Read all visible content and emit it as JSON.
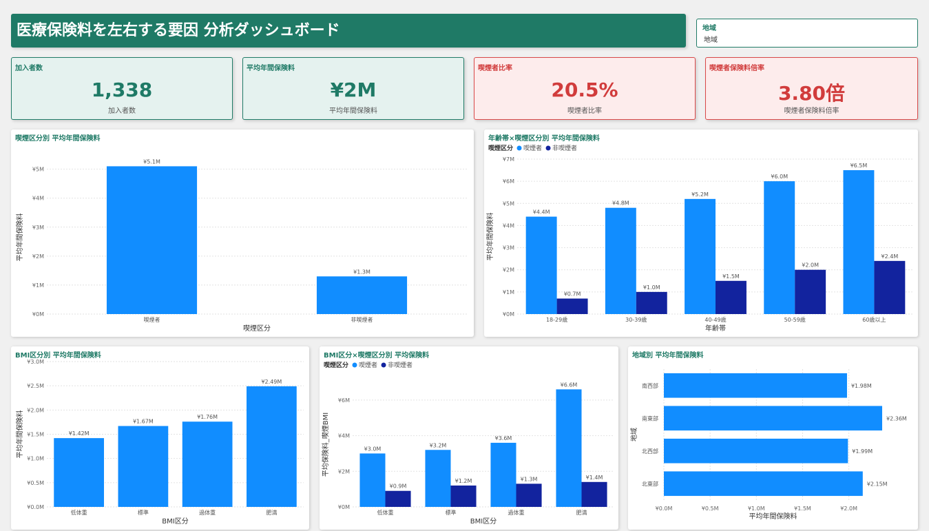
{
  "header": {
    "title": "医療保険料を左右する要因 分析ダッシュボード"
  },
  "slicer": {
    "label": "地域",
    "value": "地域"
  },
  "kpis": [
    {
      "label": "加入者数",
      "value": "1,338",
      "sub": "加入者数"
    },
    {
      "label": "平均年間保険料",
      "value": "¥2M",
      "sub": "平均年間保険料"
    },
    {
      "label": "喫煙者比率",
      "value": "20.5%",
      "sub": "喫煙者比率"
    },
    {
      "label": "喫煙者保険料倍率",
      "value": "3.80倍",
      "sub": "喫煙者保険料倍率"
    }
  ],
  "colors": {
    "smoker": "#118dff",
    "nonsmoker": "#12239e",
    "accent": "#1f7a66",
    "alert": "#d13c3c"
  },
  "chart_data": [
    {
      "id": "c1",
      "type": "bar",
      "title": "喫煙区分別 平均年間保険料",
      "xlabel": "喫煙区分",
      "ylabel": "平均年間保険料",
      "categories": [
        "喫煙者",
        "非喫煙者"
      ],
      "series": [
        {
          "values": [
            5.1,
            1.3
          ],
          "labels": [
            "¥5.1M",
            "¥1.3M"
          ]
        }
      ],
      "ylim": [
        0,
        5.3
      ],
      "ticks": [
        0,
        1,
        2,
        3,
        4,
        5
      ],
      "tick_labels": [
        "¥0M",
        "¥1M",
        "¥2M",
        "¥3M",
        "¥4M",
        "¥5M"
      ],
      "legend_title": "",
      "legend": []
    },
    {
      "id": "c2",
      "type": "bar",
      "title": "年齢帯×喫煙区分別 平均年間保険料",
      "xlabel": "年齢帯",
      "ylabel": "平均年間保険料",
      "categories": [
        "18-29歳",
        "30-39歳",
        "40-49歳",
        "50-59歳",
        "60歳以上"
      ],
      "series": [
        {
          "name": "喫煙者",
          "values": [
            4.4,
            4.8,
            5.2,
            6.0,
            6.5
          ],
          "labels": [
            "¥4.4M",
            "¥4.8M",
            "¥5.2M",
            "¥6.0M",
            "¥6.5M"
          ]
        },
        {
          "name": "非喫煙者",
          "values": [
            0.7,
            1.0,
            1.5,
            2.0,
            2.4
          ],
          "labels": [
            "¥0.7M",
            "¥1.0M",
            "¥1.5M",
            "¥2.0M",
            "¥2.4M"
          ]
        }
      ],
      "ylim": [
        0,
        7
      ],
      "ticks": [
        0,
        1,
        2,
        3,
        4,
        5,
        6,
        7
      ],
      "tick_labels": [
        "¥0M",
        "¥1M",
        "¥2M",
        "¥3M",
        "¥4M",
        "¥5M",
        "¥6M",
        "¥7M"
      ],
      "legend_title": "喫煙区分",
      "legend": [
        "喫煙者",
        "非喫煙者"
      ]
    },
    {
      "id": "c3",
      "type": "bar",
      "title": "BMI区分別 平均年間保険料",
      "xlabel": "BMI区分",
      "ylabel": "平均年間保険料",
      "categories": [
        "低体重",
        "標準",
        "過体重",
        "肥満"
      ],
      "series": [
        {
          "values": [
            1.42,
            1.67,
            1.76,
            2.49
          ],
          "labels": [
            "¥1.42M",
            "¥1.67M",
            "¥1.76M",
            "¥2.49M"
          ]
        }
      ],
      "ylim": [
        0,
        3.0
      ],
      "ticks": [
        0,
        0.5,
        1.0,
        1.5,
        2.0,
        2.5,
        3.0
      ],
      "tick_labels": [
        "¥0.0M",
        "¥0.5M",
        "¥1.0M",
        "¥1.5M",
        "¥2.0M",
        "¥2.5M",
        "¥3.0M"
      ],
      "legend_title": "",
      "legend": []
    },
    {
      "id": "c4",
      "type": "bar",
      "title": "BMI区分×喫煙区分別 平均保険料",
      "xlabel": "BMI区分",
      "ylabel": "平均保険料_喫煙BMI",
      "categories": [
        "低体重",
        "標準",
        "過体重",
        "肥満"
      ],
      "series": [
        {
          "name": "喫煙者",
          "values": [
            3.0,
            3.2,
            3.6,
            6.6
          ],
          "labels": [
            "¥3.0M",
            "¥3.2M",
            "¥3.6M",
            "¥6.6M"
          ]
        },
        {
          "name": "非喫煙者",
          "values": [
            0.9,
            1.2,
            1.3,
            1.4
          ],
          "labels": [
            "¥0.9M",
            "¥1.2M",
            "¥1.3M",
            "¥1.4M"
          ]
        }
      ],
      "ylim": [
        0,
        7.0
      ],
      "ticks": [
        0,
        2,
        4,
        6
      ],
      "tick_labels": [
        "¥0M",
        "¥2M",
        "¥4M",
        "¥6M"
      ],
      "legend_title": "喫煙区分",
      "legend": [
        "喫煙者",
        "非喫煙者"
      ]
    },
    {
      "id": "c5",
      "type": "bar",
      "orientation": "horizontal",
      "title": "地域別 平均年間保険料",
      "xlabel": "平均年間保険料",
      "ylabel": "地域",
      "categories": [
        "南西部",
        "南東部",
        "北西部",
        "北東部"
      ],
      "series": [
        {
          "values": [
            1.98,
            2.36,
            1.99,
            2.15
          ],
          "labels": [
            "¥1.98M",
            "¥2.36M",
            "¥1.99M",
            "¥2.15M"
          ]
        }
      ],
      "xlim": [
        0,
        2.36
      ],
      "ticks": [
        0,
        0.5,
        1.0,
        1.5,
        2.0
      ],
      "tick_labels": [
        "¥0.0M",
        "¥0.5M",
        "¥1.0M",
        "¥1.5M",
        "¥2.0M"
      ],
      "legend_title": "",
      "legend": []
    }
  ]
}
